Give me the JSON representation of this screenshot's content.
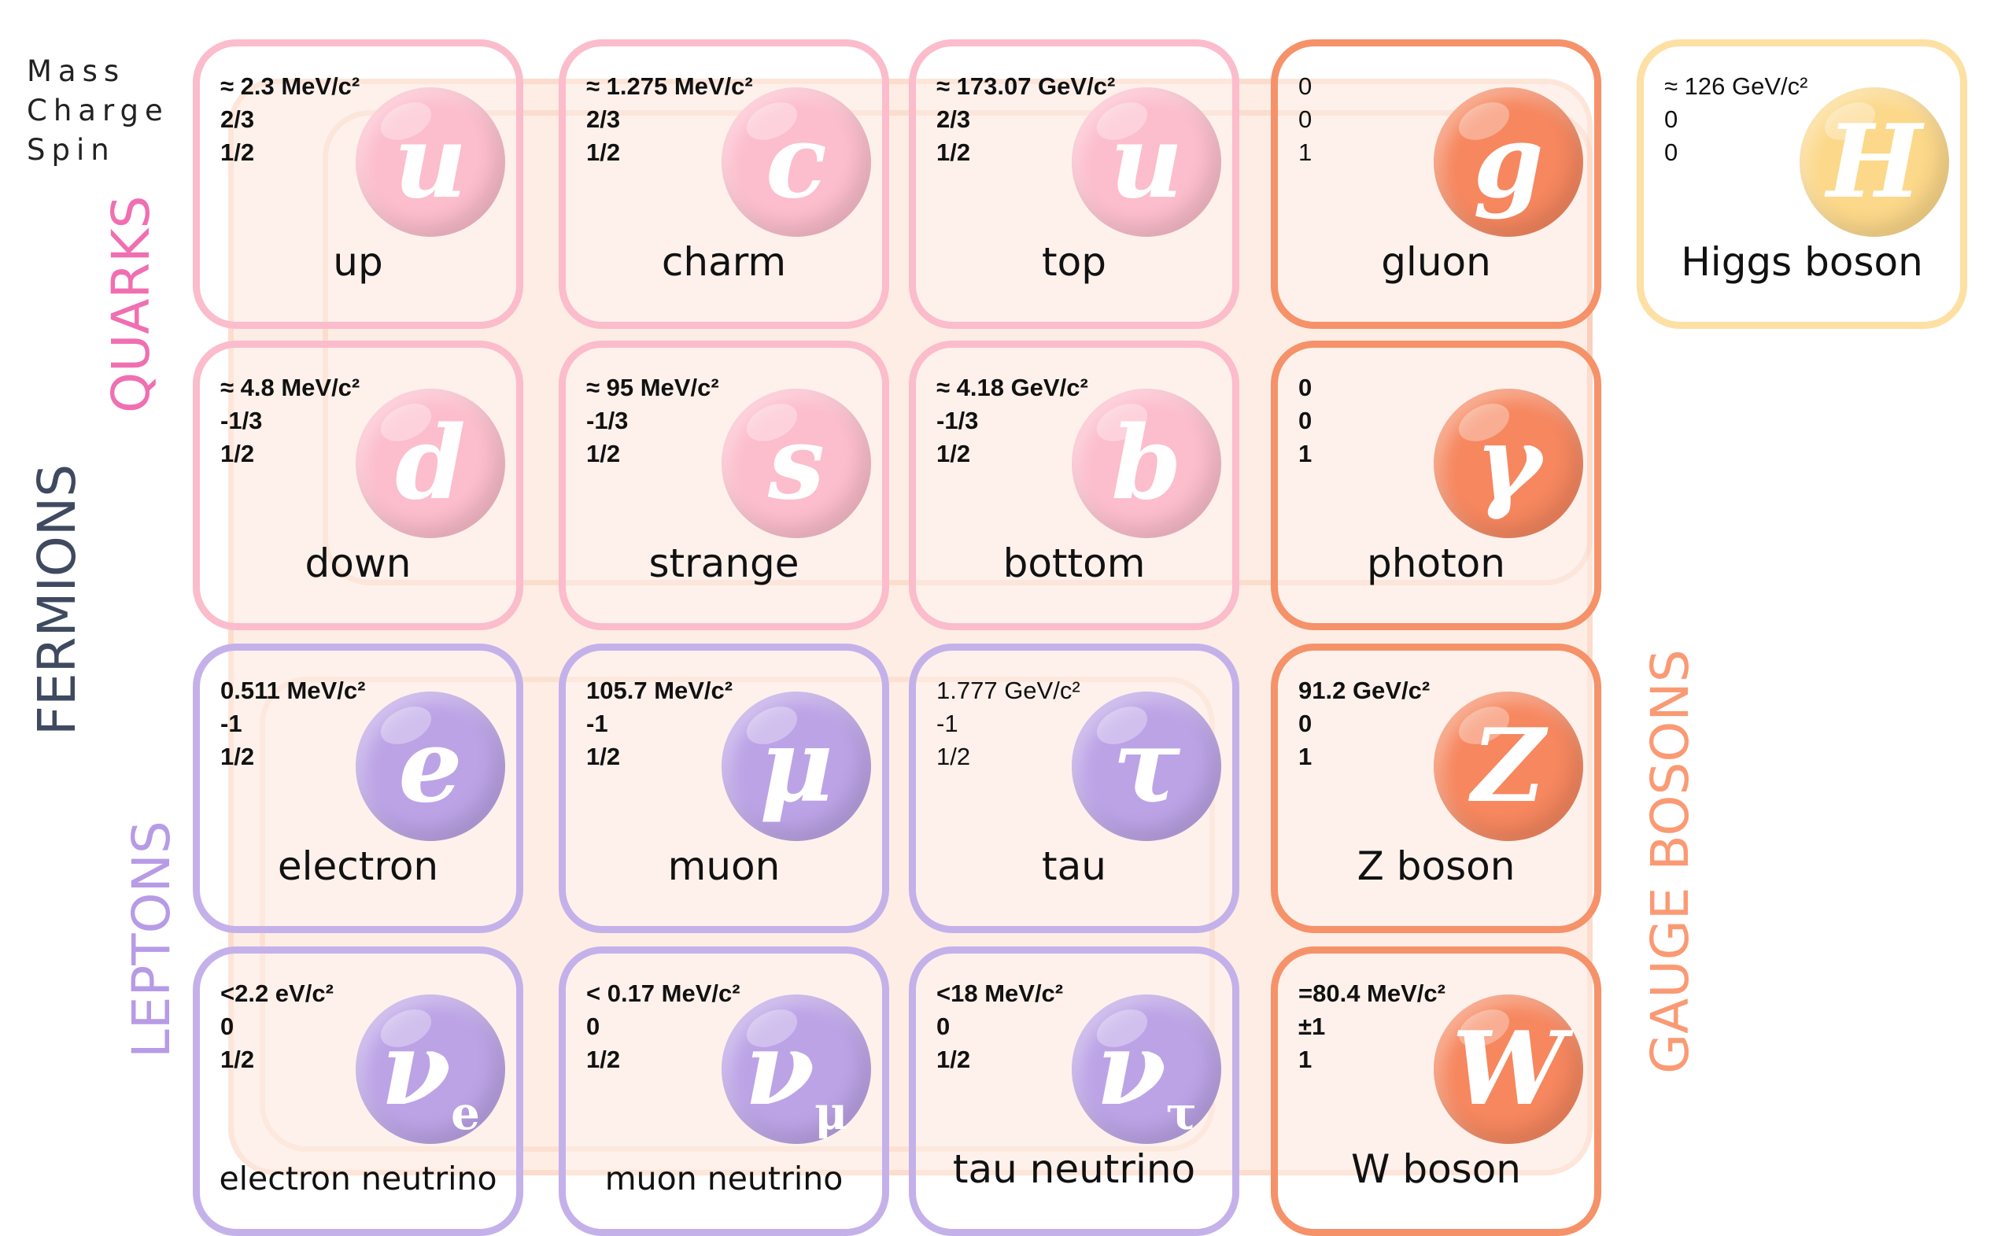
{
  "legend": {
    "mass": "Mass",
    "charge": "Charge",
    "spin": "Spin"
  },
  "groups": {
    "quarks": {
      "label": "QUARKS",
      "color": "#f06fb1"
    },
    "fermions": {
      "label": "FERMIONS",
      "color": "#3f4a60"
    },
    "leptons": {
      "label": "LEPTONS",
      "color": "#b79be6"
    },
    "gauge_bosons": {
      "label": "GAUGE BOSONS",
      "color": "#fa9a74"
    }
  },
  "colors": {
    "quark_border": "#fbbccc",
    "quark_ball": "#fcbdcc",
    "lepton_border": "#c4b1ea",
    "lepton_ball": "#bca3e6",
    "boson_border": "#f5926a",
    "boson_ball": "#f6875f",
    "higgs_border": "#fde0a4",
    "higgs_ball": "#fcd88a",
    "background_block": "#fde3d6"
  },
  "particles": [
    {
      "id": "up",
      "mass": "≈ 2.3 MeV/c²",
      "charge": "2/3",
      "spin": "1/2",
      "symbol": "u",
      "sub": "",
      "name": "up",
      "family": "quark",
      "bold": true
    },
    {
      "id": "charm",
      "mass": "≈ 1.275 MeV/c²",
      "charge": "2/3",
      "spin": "1/2",
      "symbol": "c",
      "sub": "",
      "name": "charm",
      "family": "quark",
      "bold": true
    },
    {
      "id": "top",
      "mass": "≈  173.07 GeV/c²",
      "charge": "2/3",
      "spin": "1/2",
      "symbol": "u",
      "sub": "",
      "name": "top",
      "family": "quark",
      "bold": true
    },
    {
      "id": "gluon",
      "mass": "0",
      "charge": "0",
      "spin": "1",
      "symbol": "g",
      "sub": "",
      "name": "gluon",
      "family": "boson",
      "bold": false
    },
    {
      "id": "higgs",
      "mass": "≈  126 GeV/c²",
      "charge": "0",
      "spin": "0",
      "symbol": "H",
      "sub": "",
      "name": "Higgs boson",
      "family": "higgs",
      "bold": false
    },
    {
      "id": "down",
      "mass": "≈  4.8 MeV/c²",
      "charge": "-1/3",
      "spin": "1/2",
      "symbol": "d",
      "sub": "",
      "name": "down",
      "family": "quark",
      "bold": true
    },
    {
      "id": "strange",
      "mass": "≈  95 MeV/c²",
      "charge": "-1/3",
      "spin": "1/2",
      "symbol": "s",
      "sub": "",
      "name": "strange",
      "family": "quark",
      "bold": true
    },
    {
      "id": "bottom",
      "mass": "≈ 4.18 GeV/c²",
      "charge": "-1/3",
      "spin": "1/2",
      "symbol": "b",
      "sub": "",
      "name": "bottom",
      "family": "quark",
      "bold": true
    },
    {
      "id": "photon",
      "mass": "0",
      "charge": "0",
      "spin": "1",
      "symbol": "γ",
      "sub": "",
      "name": "photon",
      "family": "boson",
      "bold": true
    },
    {
      "id": "electron",
      "mass": "0.511 MeV/c²",
      "charge": "-1",
      "spin": "1/2",
      "symbol": "e",
      "sub": "",
      "name": "electron",
      "family": "lepton",
      "bold": true
    },
    {
      "id": "muon",
      "mass": "105.7 MeV/c²",
      "charge": "-1",
      "spin": "1/2",
      "symbol": "μ",
      "sub": "",
      "name": "muon",
      "family": "lepton",
      "bold": true
    },
    {
      "id": "tau",
      "mass": "1.777 GeV/c²",
      "charge": "-1",
      "spin": "1/2",
      "symbol": "τ",
      "sub": "",
      "name": "tau",
      "family": "lepton",
      "bold": false
    },
    {
      "id": "zboson",
      "mass": "91.2 GeV/c²",
      "charge": "0",
      "spin": "1",
      "symbol": "Z",
      "sub": "",
      "name": "Z boson",
      "family": "boson",
      "bold": true
    },
    {
      "id": "enu",
      "mass": "<2.2 eV/c²",
      "charge": "0",
      "spin": "1/2",
      "symbol": "ν",
      "sub": "e",
      "name": "electron neutrino",
      "family": "lepton",
      "bold": true
    },
    {
      "id": "munu",
      "mass": "< 0.17 MeV/c²",
      "charge": "0",
      "spin": "1/2",
      "symbol": "ν",
      "sub": "μ",
      "name": "muon neutrino",
      "family": "lepton",
      "bold": true
    },
    {
      "id": "taunu",
      "mass": "<18 MeV/c²",
      "charge": "0",
      "spin": "1/2",
      "symbol": "ν",
      "sub": "τ",
      "name": "tau neutrino",
      "family": "lepton",
      "bold": true
    },
    {
      "id": "wboson",
      "mass": "=80.4 MeV/c²",
      "charge": "±1",
      "spin": "1",
      "symbol": "W",
      "sub": "",
      "name": "W boson",
      "family": "boson",
      "bold": true
    }
  ]
}
